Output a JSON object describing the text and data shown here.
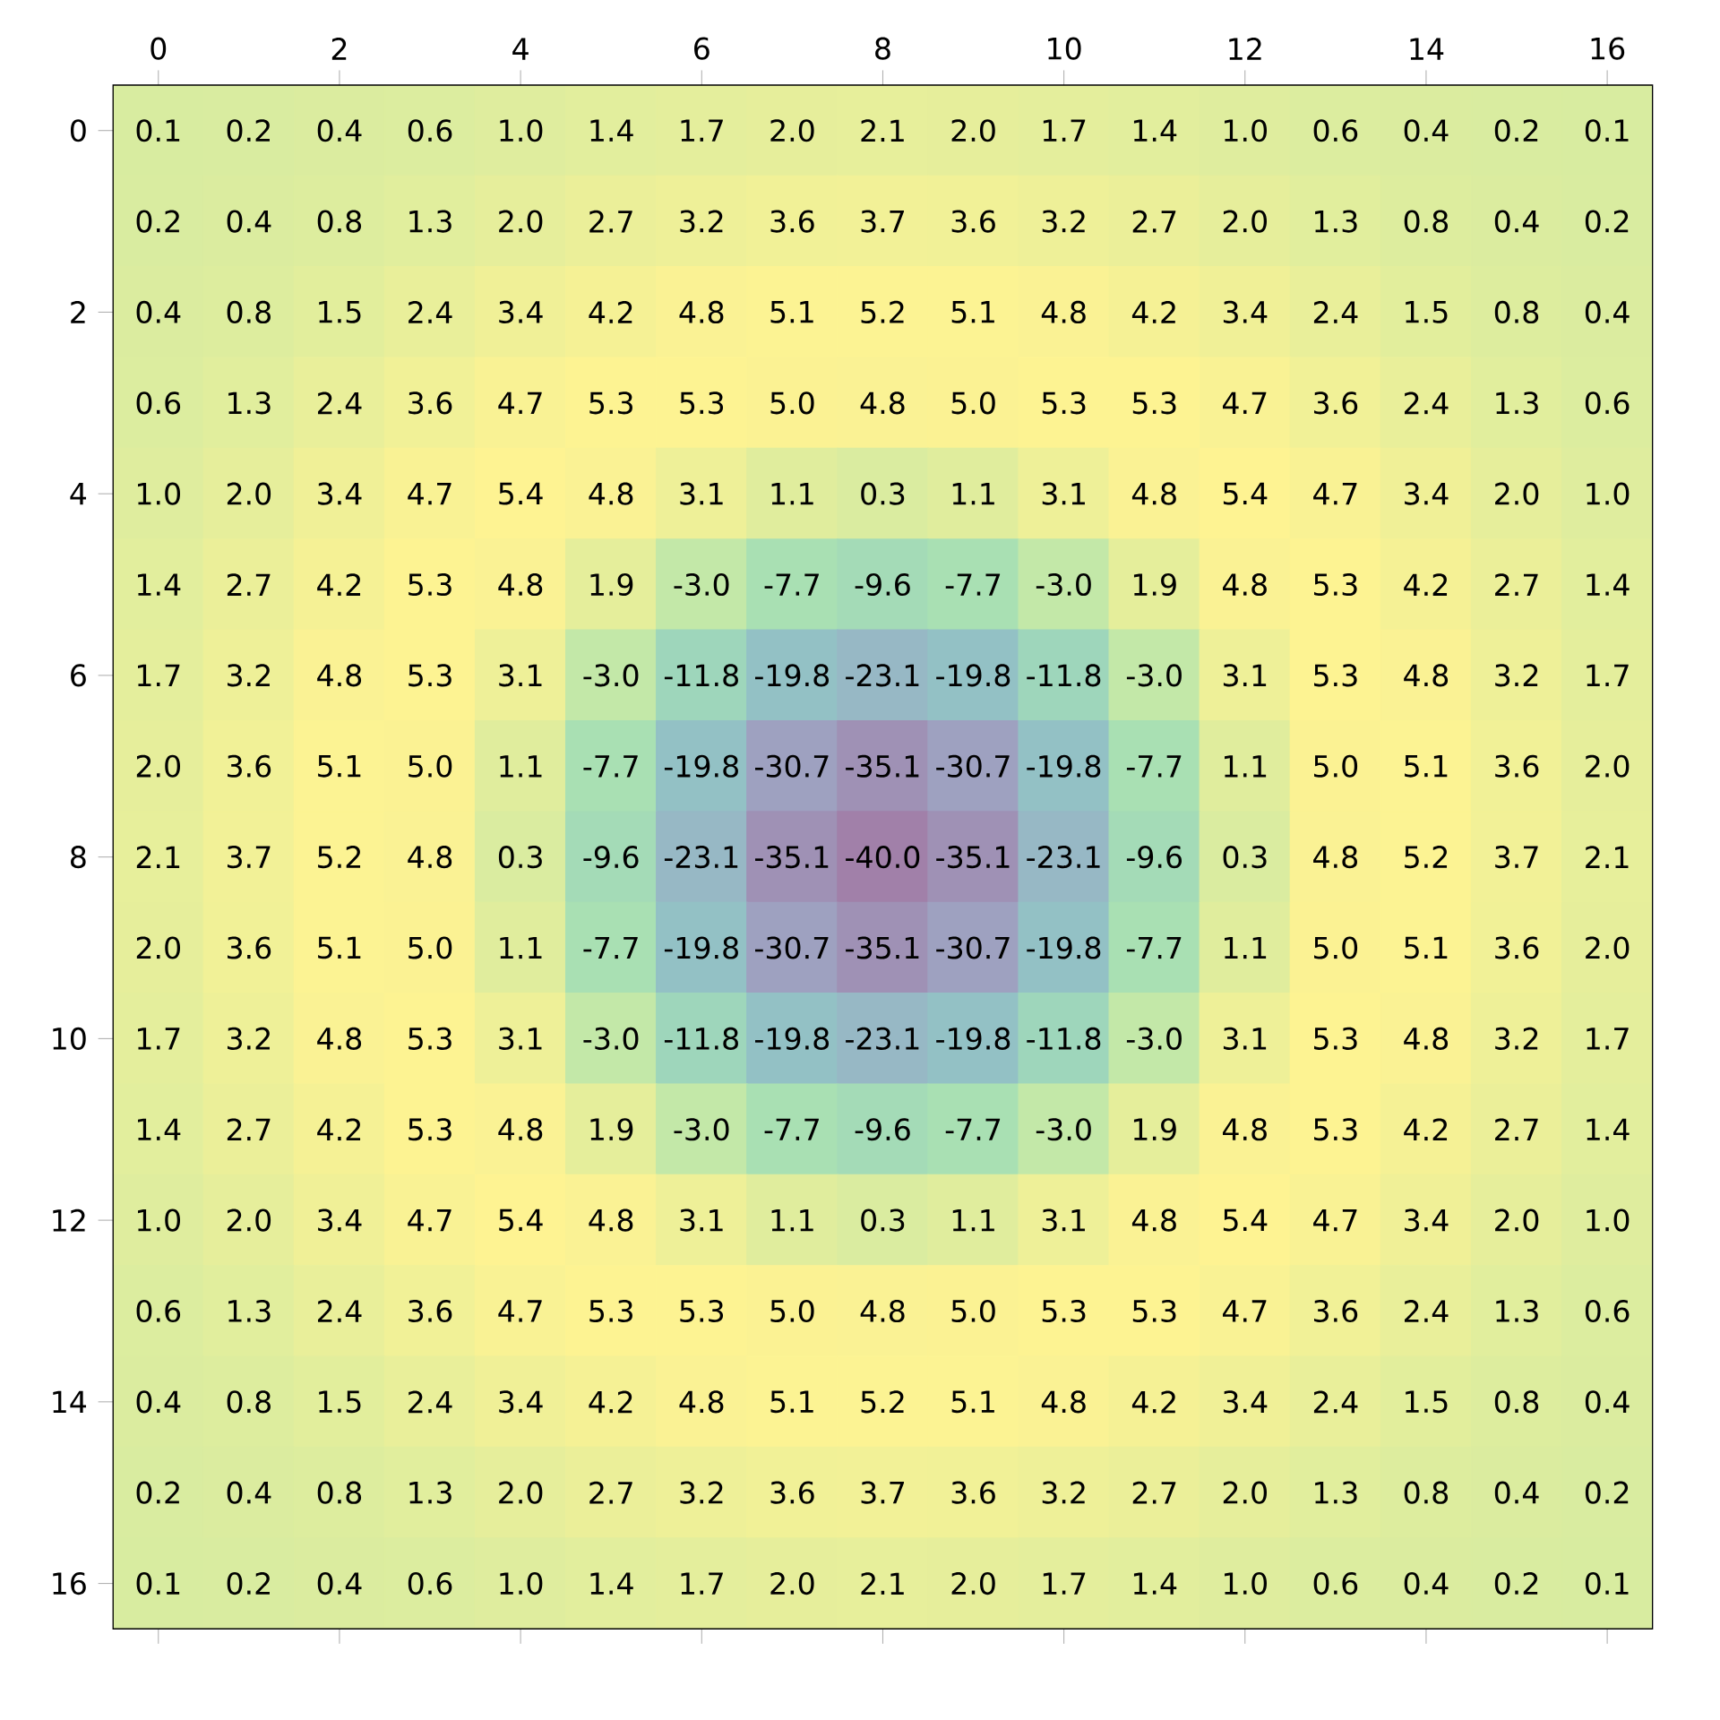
{
  "chart_data": {
    "type": "heatmap",
    "categories": [
      "0",
      null,
      "2",
      null,
      "4",
      null,
      "6",
      null,
      "8",
      null,
      "10",
      null,
      "12",
      null,
      "14",
      null,
      "16"
    ],
    "y_categories": [
      "0",
      null,
      "2",
      null,
      "4",
      null,
      "6",
      null,
      "8",
      null,
      "10",
      null,
      "12",
      null,
      "14",
      null,
      "16"
    ],
    "cells": [
      [
        0.1,
        0.2,
        0.4,
        0.6,
        1.0,
        1.4,
        1.7,
        2.0,
        2.1,
        2.0,
        1.7,
        1.4,
        1.0,
        0.6,
        0.4,
        0.2,
        0.1
      ],
      [
        0.2,
        0.4,
        0.8,
        1.3,
        2.0,
        2.7,
        3.2,
        3.6,
        3.7,
        3.6,
        3.2,
        2.7,
        2.0,
        1.3,
        0.8,
        0.4,
        0.2
      ],
      [
        0.4,
        0.8,
        1.5,
        2.4,
        3.4,
        4.2,
        4.8,
        5.1,
        5.2,
        5.1,
        4.8,
        4.2,
        3.4,
        2.4,
        1.5,
        0.8,
        0.4
      ],
      [
        0.6,
        1.3,
        2.4,
        3.6,
        4.7,
        5.3,
        5.3,
        5.0,
        4.8,
        5.0,
        5.3,
        5.3,
        4.7,
        3.6,
        2.4,
        1.3,
        0.6
      ],
      [
        1.0,
        2.0,
        3.4,
        4.7,
        5.4,
        4.8,
        3.1,
        1.1,
        0.3,
        1.1,
        3.1,
        4.8,
        5.4,
        4.7,
        3.4,
        2.0,
        1.0
      ],
      [
        1.4,
        2.7,
        4.2,
        5.3,
        4.8,
        1.9,
        -3.0,
        -7.7,
        -9.6,
        -7.7,
        -3.0,
        1.9,
        4.8,
        5.3,
        4.2,
        2.7,
        1.4
      ],
      [
        1.7,
        3.2,
        4.8,
        5.3,
        3.1,
        -3.0,
        -11.8,
        -19.8,
        -23.1,
        -19.8,
        -11.8,
        -3.0,
        3.1,
        5.3,
        4.8,
        3.2,
        1.7
      ],
      [
        2.0,
        3.6,
        5.1,
        5.0,
        1.1,
        -7.7,
        -19.8,
        -30.7,
        -35.1,
        -30.7,
        -19.8,
        -7.7,
        1.1,
        5.0,
        5.1,
        3.6,
        2.0
      ],
      [
        2.1,
        3.7,
        5.2,
        4.8,
        0.3,
        -9.6,
        -23.1,
        -35.1,
        -40.0,
        -35.1,
        -23.1,
        -9.6,
        0.3,
        4.8,
        5.2,
        3.7,
        2.1
      ],
      [
        2.0,
        3.6,
        5.1,
        5.0,
        1.1,
        -7.7,
        -19.8,
        -30.7,
        -35.1,
        -30.7,
        -19.8,
        -7.7,
        1.1,
        5.0,
        5.1,
        3.6,
        2.0
      ],
      [
        1.7,
        3.2,
        4.8,
        5.3,
        3.1,
        -3.0,
        -11.8,
        -19.8,
        -23.1,
        -19.8,
        -11.8,
        -3.0,
        3.1,
        5.3,
        4.8,
        3.2,
        1.7
      ],
      [
        1.4,
        2.7,
        4.2,
        5.3,
        4.8,
        1.9,
        -3.0,
        -7.7,
        -9.6,
        -7.7,
        -3.0,
        1.9,
        4.8,
        5.3,
        4.2,
        2.7,
        1.4
      ],
      [
        1.0,
        2.0,
        3.4,
        4.7,
        5.4,
        4.8,
        3.1,
        1.1,
        0.3,
        1.1,
        3.1,
        4.8,
        5.4,
        4.7,
        3.4,
        2.0,
        1.0
      ],
      [
        0.6,
        1.3,
        2.4,
        3.6,
        4.7,
        5.3,
        5.3,
        5.0,
        4.8,
        5.0,
        5.3,
        5.3,
        4.7,
        3.6,
        2.4,
        1.3,
        0.6
      ],
      [
        0.4,
        0.8,
        1.5,
        2.4,
        3.4,
        4.2,
        4.8,
        5.1,
        5.2,
        5.1,
        4.8,
        4.2,
        3.4,
        2.4,
        1.5,
        0.8,
        0.4
      ],
      [
        0.2,
        0.4,
        0.8,
        1.3,
        2.0,
        2.7,
        3.2,
        3.6,
        3.7,
        3.6,
        3.2,
        2.7,
        2.0,
        1.3,
        0.8,
        0.4,
        0.2
      ],
      [
        0.1,
        0.2,
        0.4,
        0.6,
        1.0,
        1.4,
        1.7,
        2.0,
        2.1,
        2.0,
        1.7,
        1.4,
        1.0,
        0.6,
        0.4,
        0.2,
        0.1
      ]
    ],
    "cell_labels": [
      [
        "0.1",
        "0.2",
        "0.4",
        "0.6",
        "1.0",
        "1.4",
        "1.7",
        "2.0",
        "2.1",
        "2.0",
        "1.7",
        "1.4",
        "1.0",
        "0.6",
        "0.4",
        "0.2",
        "0.1"
      ],
      [
        "0.2",
        "0.4",
        "0.8",
        "1.3",
        "2.0",
        "2.7",
        "3.2",
        "3.6",
        "3.7",
        "3.6",
        "3.2",
        "2.7",
        "2.0",
        "1.3",
        "0.8",
        "0.4",
        "0.2"
      ],
      [
        "0.4",
        "0.8",
        "1.5",
        "2.4",
        "3.4",
        "4.2",
        "4.8",
        "5.1",
        "5.2",
        "5.1",
        "4.8",
        "4.2",
        "3.4",
        "2.4",
        "1.5",
        "0.8",
        "0.4"
      ],
      [
        "0.6",
        "1.3",
        "2.4",
        "3.6",
        "4.7",
        "5.3",
        "5.3",
        "5.0",
        "4.8",
        "5.0",
        "5.3",
        "5.3",
        "4.7",
        "3.6",
        "2.4",
        "1.3",
        "0.6"
      ],
      [
        "1.0",
        "2.0",
        "3.4",
        "4.7",
        "5.4",
        "4.8",
        "3.1",
        "1.1",
        "0.3",
        "1.1",
        "3.1",
        "4.8",
        "5.4",
        "4.7",
        "3.4",
        "2.0",
        "1.0"
      ],
      [
        "1.4",
        "2.7",
        "4.2",
        "5.3",
        "4.8",
        "1.9",
        "-3.0",
        "-7.7",
        "-9.6",
        "-7.7",
        "-3.0",
        "1.9",
        "4.8",
        "5.3",
        "4.2",
        "2.7",
        "1.4"
      ],
      [
        "1.7",
        "3.2",
        "4.8",
        "5.3",
        "3.1",
        "-3.0",
        "-11.8",
        "-19.8",
        "-23.1",
        "-19.8",
        "-11.8",
        "-3.0",
        "3.1",
        "5.3",
        "4.8",
        "3.2",
        "1.7"
      ],
      [
        "2.0",
        "3.6",
        "5.1",
        "5.0",
        "1.1",
        "-7.7",
        "-19.8",
        "-30.7",
        "-35.1",
        "-30.7",
        "-19.8",
        "-7.7",
        "1.1",
        "5.0",
        "5.1",
        "3.6",
        "2.0"
      ],
      [
        "2.1",
        "3.7",
        "5.2",
        "4.8",
        "0.3",
        "-9.6",
        "-23.1",
        "-35.1",
        "-40.0",
        "-35.1",
        "-23.1",
        "-9.6",
        "0.3",
        "4.8",
        "5.2",
        "3.7",
        "2.1"
      ],
      [
        "2.0",
        "3.6",
        "5.1",
        "5.0",
        "1.1",
        "-7.7",
        "-19.8",
        "-30.7",
        "-35.1",
        "-30.7",
        "-19.8",
        "-7.7",
        "1.1",
        "5.0",
        "5.1",
        "3.6",
        "2.0"
      ],
      [
        "1.7",
        "3.2",
        "4.8",
        "5.3",
        "3.1",
        "-3.0",
        "-11.8",
        "-19.8",
        "-23.1",
        "-19.8",
        "-11.8",
        "-3.0",
        "3.1",
        "5.3",
        "4.8",
        "3.2",
        "1.7"
      ],
      [
        "1.4",
        "2.7",
        "4.2",
        "5.3",
        "4.8",
        "1.9",
        "-3.0",
        "-7.7",
        "-9.6",
        "-7.7",
        "-3.0",
        "1.9",
        "4.8",
        "5.3",
        "4.2",
        "2.7",
        "1.4"
      ],
      [
        "1.0",
        "2.0",
        "3.4",
        "4.7",
        "5.4",
        "4.8",
        "3.1",
        "1.1",
        "0.3",
        "1.1",
        "3.1",
        "4.8",
        "5.4",
        "4.7",
        "3.4",
        "2.0",
        "1.0"
      ],
      [
        "0.6",
        "1.3",
        "2.4",
        "3.6",
        "4.7",
        "5.3",
        "5.3",
        "5.0",
        "4.8",
        "5.0",
        "5.3",
        "5.3",
        "4.7",
        "3.6",
        "2.4",
        "1.3",
        "0.6"
      ],
      [
        "0.4",
        "0.8",
        "1.5",
        "2.4",
        "3.4",
        "4.2",
        "4.8",
        "5.1",
        "5.2",
        "5.1",
        "4.8",
        "4.2",
        "3.4",
        "2.4",
        "1.5",
        "0.8",
        "0.4"
      ],
      [
        "0.2",
        "0.4",
        "0.8",
        "1.3",
        "2.0",
        "2.7",
        "3.2",
        "3.6",
        "3.7",
        "3.6",
        "3.2",
        "2.7",
        "2.0",
        "1.3",
        "0.8",
        "0.4",
        "0.2"
      ],
      [
        "0.1",
        "0.2",
        "0.4",
        "0.6",
        "1.0",
        "1.4",
        "1.7",
        "2.0",
        "2.1",
        "2.0",
        "1.7",
        "1.4",
        "1.0",
        "0.6",
        "0.4",
        "0.2",
        "0.1"
      ]
    ]
  }
}
